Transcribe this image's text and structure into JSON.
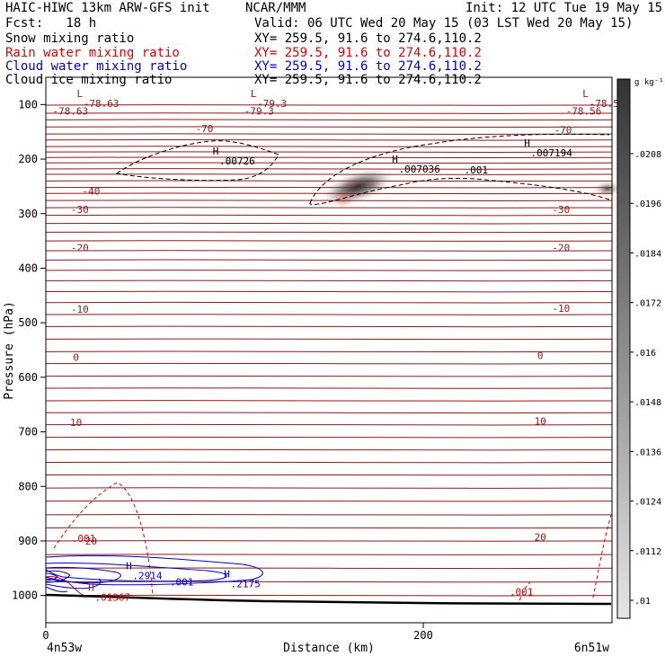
{
  "header": {
    "title": "HAIC-HIWC 13km ARW-GFS init",
    "org": "NCAR/MMM",
    "init": "Init: 12 UTC Tue 19 May 15",
    "fcst": "Fcst:   18 h",
    "valid": "Valid: 06 UTC Wed 20 May 15 (03 LST Wed 20 May 15)"
  },
  "fields": [
    {
      "name": "Snow mixing ratio",
      "xy": "XY= 259.5, 91.6 to 274.6,110.2",
      "color": "#000000"
    },
    {
      "name": "Rain water mixing ratio",
      "xy": "XY= 259.5, 91.6 to 274.6,110.2",
      "color": "#e00000"
    },
    {
      "name": "Cloud water mixing ratio",
      "xy": "XY= 259.5, 91.6 to 274.6,110.2",
      "color": "#0000c8"
    },
    {
      "name": "Cloud ice mixing ratio",
      "xy": "XY= 259.5, 91.6 to 274.6,110.2",
      "color": "#000000"
    }
  ],
  "chart_data": {
    "type": "cross-section",
    "xlabel": "Distance (km)",
    "ylabel": "Pressure (hPa)",
    "x_range": [
      0,
      300
    ],
    "x_ticks": [
      0,
      200
    ],
    "y_range": [
      1050,
      50
    ],
    "y_ticks": [
      100,
      200,
      300,
      400,
      500,
      600,
      700,
      800,
      900,
      1000
    ],
    "left_endpoint": "4n53w",
    "right_endpoint": "6n51w",
    "colorbar": {
      "unit": "g kg⁻¹",
      "labels": [
        ".0208",
        ".0196",
        ".0184",
        ".0172",
        ".016",
        ".0148",
        ".0136",
        ".0124",
        ".0112",
        ".01"
      ]
    },
    "temperature_labels": [
      {
        "text": "-78.63",
        "x": 13,
        "p": 112
      },
      {
        "text": "-79.3",
        "x": 113,
        "p": 112
      },
      {
        "text": "-78.56",
        "x": 285,
        "p": 112
      },
      {
        "text": "-70",
        "x": 84,
        "p": 144
      },
      {
        "text": "-70",
        "x": 274,
        "p": 146
      },
      {
        "text": "-40",
        "x": 24,
        "p": 258
      },
      {
        "text": "-30",
        "x": 18,
        "p": 292
      },
      {
        "text": "-30",
        "x": 273,
        "p": 292
      },
      {
        "text": "-20",
        "x": 18,
        "p": 362
      },
      {
        "text": "-20",
        "x": 273,
        "p": 362
      },
      {
        "text": "-10",
        "x": 18,
        "p": 475
      },
      {
        "text": "-10",
        "x": 273,
        "p": 473
      },
      {
        "text": "0",
        "x": 16,
        "p": 563
      },
      {
        "text": "0",
        "x": 262,
        "p": 560
      },
      {
        "text": "10",
        "x": 16,
        "p": 683
      },
      {
        "text": "10",
        "x": 262,
        "p": 680
      },
      {
        "text": "20",
        "x": 24,
        "p": 900
      },
      {
        "text": "20",
        "x": 262,
        "p": 893
      }
    ],
    "extrema": [
      {
        "type": "L",
        "value": "-78.63",
        "x": 18,
        "p": 80
      },
      {
        "type": "L",
        "value": "-79.3",
        "x": 110,
        "p": 80
      },
      {
        "type": "L",
        "value": "-78.56",
        "x": 286,
        "p": 80
      },
      {
        "type": "H",
        "value": ".00726",
        "x": 90,
        "p": 185
      },
      {
        "type": "H",
        "value": ".007036",
        "x": 185,
        "p": 200
      },
      {
        "type": "H",
        "value": ".007194",
        "x": 255,
        "p": 170
      },
      {
        "type": "H",
        "value": ".2914",
        "x": 44,
        "p": 945
      },
      {
        "type": "H",
        "value": ".2175",
        "x": 96,
        "p": 960
      },
      {
        "type": "H",
        "value": ".01367",
        "x": 24,
        "p": 985
      }
    ],
    "contour_labels": [
      {
        "text": ".001",
        "x": 228,
        "p": 220,
        "field": "ice"
      },
      {
        "text": ".001",
        "x": 72,
        "p": 975,
        "field": "cloud_water"
      },
      {
        "text": ".001",
        "x": 20,
        "p": 895,
        "field": "rain"
      },
      {
        "text": ".001",
        "x": 252,
        "p": 993,
        "field": "rain"
      }
    ]
  }
}
